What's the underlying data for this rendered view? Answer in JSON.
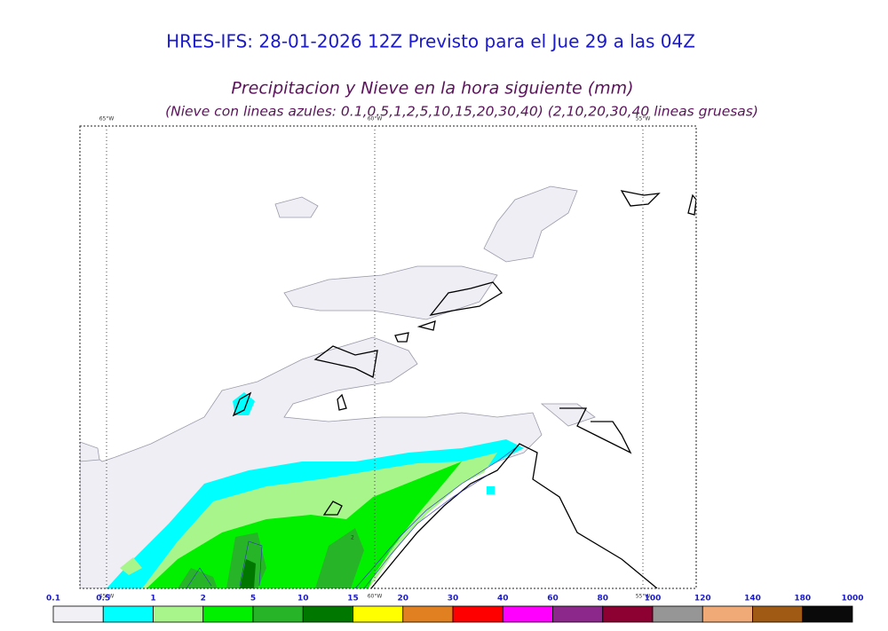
{
  "header": {
    "title": "HRES-IFS: 28-01-2026 12Z Previsto para el Jue 29 a las 04Z",
    "subtitle": "Precipitacion y Nieve en la hora siguiente (mm)",
    "note": "(Nieve con lineas azules: 0.1,0.5,1,2,5,10,15,20,30,40)  (2,10,20,30,40 lineas gruesas)"
  },
  "map": {
    "meridians": [
      "65°W",
      "60°W",
      "55°W"
    ],
    "contour_label": "2"
  },
  "legend": {
    "labels": [
      "0.1",
      "0.5",
      "1",
      "2",
      "5",
      "10",
      "15",
      "20",
      "30",
      "40",
      "60",
      "80",
      "100",
      "120",
      "140",
      "180",
      "1000"
    ],
    "colors": [
      "#f0f0f5",
      "#00ffff",
      "#a8f58c",
      "#00f000",
      "#28b428",
      "#007800",
      "#ffff00",
      "#e08020",
      "#ff0000",
      "#ff00ff",
      "#8c288c",
      "#8c0032",
      "#969696",
      "#f0aa78",
      "#a05a14",
      "#0a0a0a"
    ]
  }
}
